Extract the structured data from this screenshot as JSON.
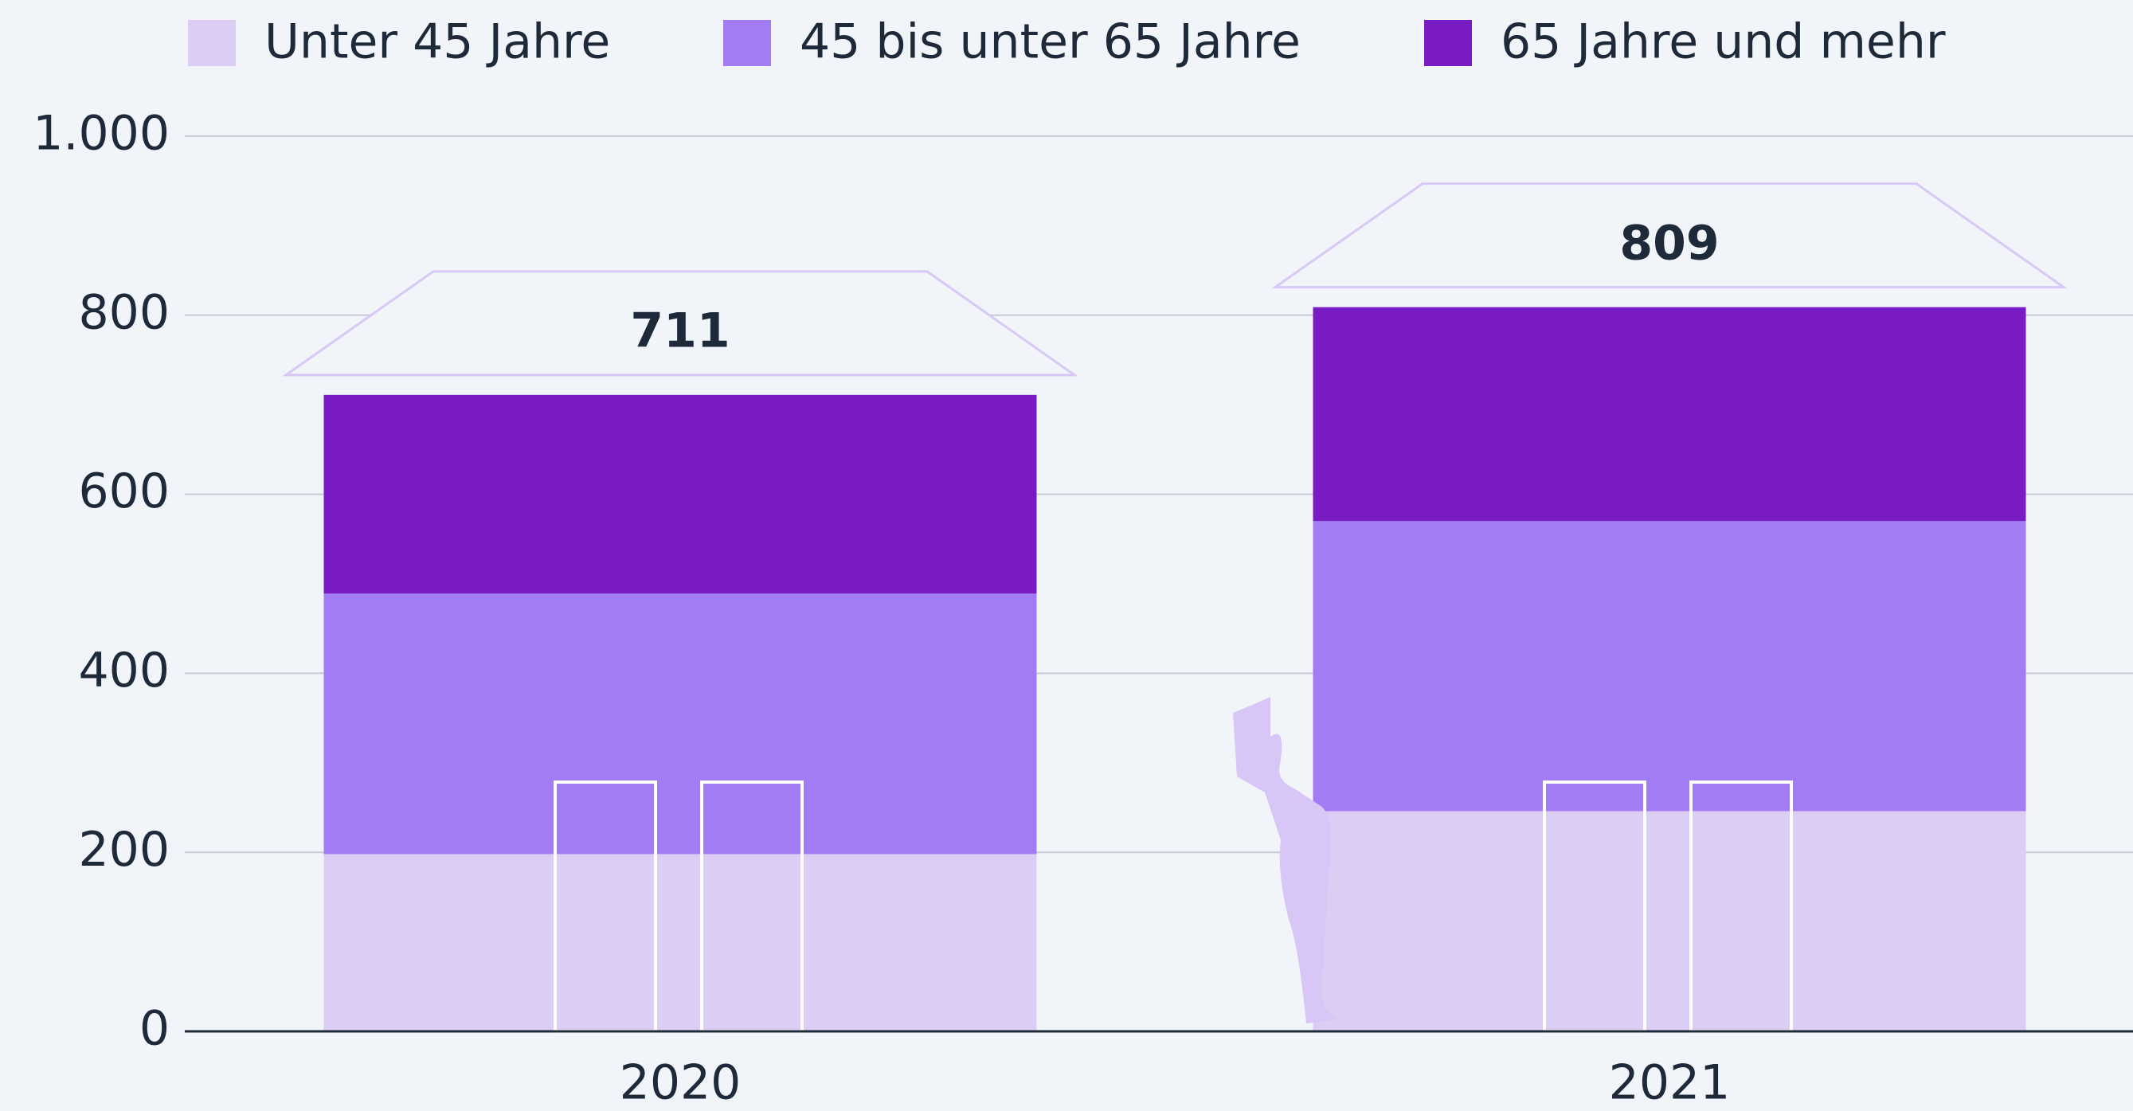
{
  "chart_data": {
    "type": "stacked-bar",
    "categories": [
      "2020",
      "2021"
    ],
    "series": [
      {
        "name": "Unter 45 Jahre",
        "color": "#dccdf4",
        "values": [
          198,
          246
        ]
      },
      {
        "name": "45 bis unter 65 Jahre",
        "color": "#a27cf5",
        "values": [
          291,
          324
        ]
      },
      {
        "name": "65 Jahre und mehr",
        "color": "#7a1cc4",
        "values": [
          222,
          239
        ]
      }
    ],
    "totals": [
      711,
      809
    ],
    "ylim": [
      0,
      1000
    ],
    "yticks": [
      0,
      200,
      400,
      600,
      800,
      {
        "value": 1000,
        "label": "1.000"
      }
    ],
    "grid": true
  }
}
